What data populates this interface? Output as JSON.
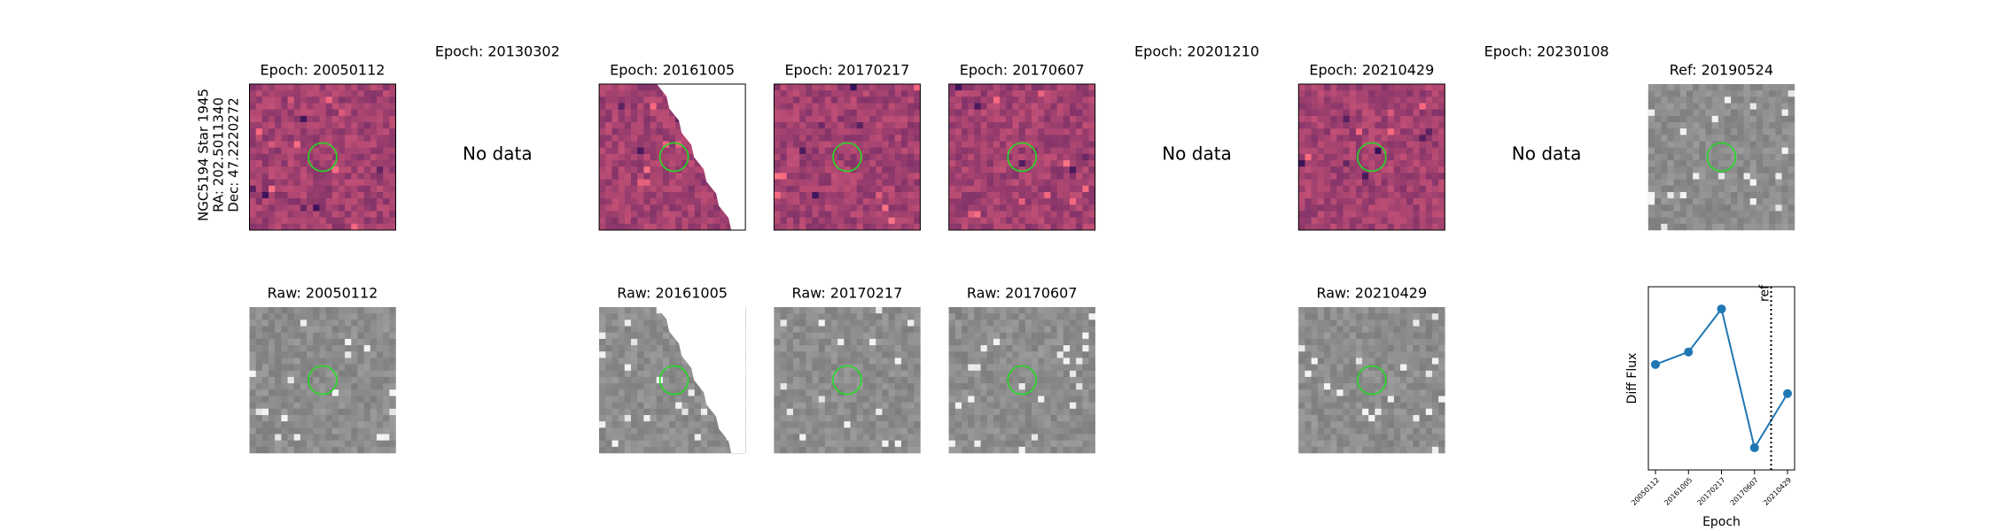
{
  "row_label": [
    "NGC5194 Star 1945",
    "RA: 202.5011340",
    "Dec: 47.2220272"
  ],
  "diff_panels": [
    {
      "title": "Epoch: 20050112"
    },
    {
      "title": "Epoch: 20130302",
      "message": "No data"
    },
    {
      "title": "Epoch: 20161005"
    },
    {
      "title": "Epoch: 20170217"
    },
    {
      "title": "Epoch: 20170607"
    },
    {
      "title": "Epoch: 20201210",
      "message": "No data"
    },
    {
      "title": "Epoch: 20210429"
    },
    {
      "title": "Epoch: 20230108",
      "message": "No data"
    },
    {
      "title": "Ref: 20190524"
    }
  ],
  "raw_panels": [
    {
      "title": "Raw: 20050112"
    },
    null,
    {
      "title": "Raw: 20161005"
    },
    {
      "title": "Raw: 20170217"
    },
    {
      "title": "Raw: 20170607"
    },
    null,
    {
      "title": "Raw: 20210429"
    },
    null,
    null
  ],
  "chart_data": {
    "type": "line",
    "ylabel": "Diff Flux",
    "xlabel": "Epoch",
    "categories": [
      "20050112",
      "20161005",
      "20170217",
      "20170607",
      "20210429"
    ],
    "values": [
      0.6,
      0.69,
      1.0,
      0.0,
      0.39
    ],
    "color": "#1f77b4",
    "ref_label": "ref"
  }
}
